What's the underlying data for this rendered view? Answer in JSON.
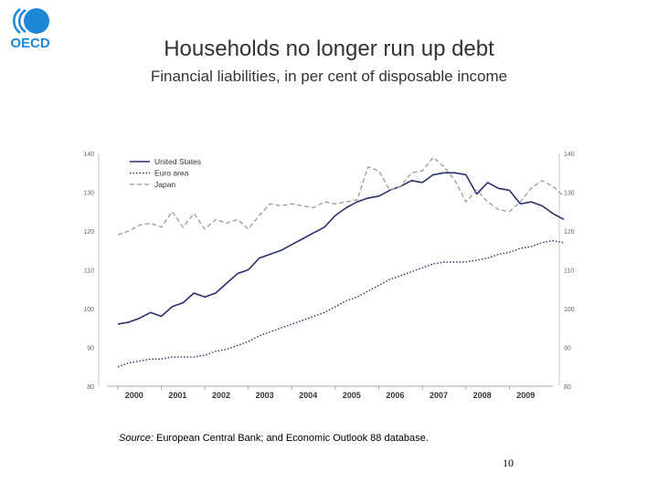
{
  "header": {
    "logo_text": "OECD",
    "title": "Households no longer run up debt",
    "subtitle": "Financial liabilities, in per cent of disposable income"
  },
  "footer": {
    "source_label": "Source:",
    "source_text": " European Central Bank; and Economic Outlook 88 database.",
    "page_number": "10"
  },
  "colors": {
    "us": "#2b2f6b",
    "euro": "#2b2f6b",
    "japan": "#9a9a9a",
    "axis": "#aaaaaa",
    "tick_text": "#666666"
  },
  "chart_data": {
    "type": "line",
    "title": "Households no longer run up debt",
    "subtitle": "Financial liabilities, in per cent of disposable income",
    "xlabel": "",
    "ylabel": "",
    "x_start": 2000,
    "x_step": 0.25,
    "xlim": [
      1999.75,
      2010.0
    ],
    "ylim": [
      80,
      140
    ],
    "yticks": [
      80,
      90,
      100,
      110,
      120,
      130,
      140
    ],
    "year_labels": [
      "2000",
      "2001",
      "2002",
      "2003",
      "2004",
      "2005",
      "2006",
      "2007",
      "2008",
      "2009"
    ],
    "grid": false,
    "legend_position": "top-left",
    "series": [
      {
        "name": "United States",
        "style": "solid",
        "values": [
          96,
          96.5,
          97.5,
          99,
          98,
          100.5,
          101.5,
          104,
          103,
          104,
          106.5,
          109,
          110,
          113,
          114,
          115,
          116.5,
          118,
          119.5,
          121,
          124,
          126,
          127.5,
          128.5,
          129,
          130.5,
          131.5,
          133,
          132.5,
          134.5,
          135,
          135,
          134.5,
          129.5,
          132.5,
          131,
          130.5,
          127,
          127.5,
          126.5,
          124.5,
          123
        ]
      },
      {
        "name": "Euro area",
        "style": "dotted",
        "values": [
          85,
          86,
          86.5,
          87,
          87,
          87.5,
          87.5,
          87.5,
          88,
          89,
          89.5,
          90.5,
          91.5,
          93,
          94,
          95,
          96,
          97,
          98,
          99,
          100.5,
          102,
          103,
          104.5,
          106,
          107.5,
          108.5,
          109.5,
          110.5,
          111.5,
          112,
          112,
          112,
          112.5,
          113,
          114,
          114.5,
          115.5,
          116,
          117,
          117.5,
          117
        ]
      },
      {
        "name": "Japan",
        "style": "dashed",
        "values": [
          119,
          120,
          121.5,
          122,
          121,
          125,
          121,
          124.5,
          120.5,
          123,
          122,
          123,
          120.5,
          124,
          127,
          126.5,
          127,
          126.5,
          126,
          127.5,
          127,
          127.5,
          128,
          136.5,
          135.5,
          130.5,
          131.5,
          135,
          135.5,
          139,
          136.5,
          133,
          127.5,
          130.5,
          127.5,
          125.5,
          125,
          127.5,
          131,
          133,
          131.5,
          129
        ]
      }
    ]
  }
}
